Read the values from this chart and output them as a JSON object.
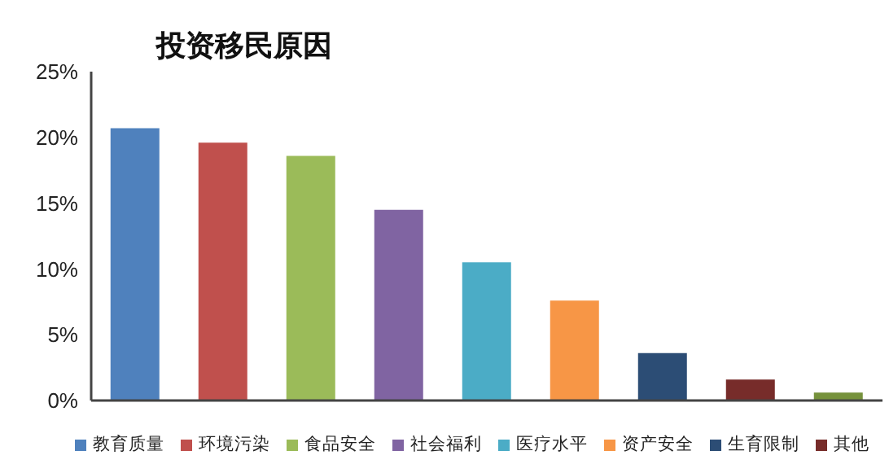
{
  "chart_data": {
    "type": "bar",
    "title": "投资移民原因",
    "categories": [
      null,
      null,
      null,
      null,
      null,
      null,
      null,
      null,
      null
    ],
    "series": [
      {
        "name": "教育质量",
        "color": "#4f81bd",
        "values": [
          20.7,
          null,
          null,
          null,
          null,
          null,
          null,
          null,
          null
        ]
      },
      {
        "name": "环境污染",
        "color": "#c0504d",
        "values": [
          null,
          19.6,
          null,
          null,
          null,
          null,
          null,
          null,
          null
        ]
      },
      {
        "name": "食品安全",
        "color": "#9bbb59",
        "values": [
          null,
          null,
          18.6,
          null,
          null,
          null,
          null,
          null,
          null
        ]
      },
      {
        "name": "社会福利",
        "color": "#8064a2",
        "values": [
          null,
          null,
          null,
          14.5,
          null,
          null,
          null,
          null,
          null
        ]
      },
      {
        "name": "医疗水平",
        "color": "#4bacc6",
        "values": [
          null,
          null,
          null,
          null,
          10.5,
          null,
          null,
          null,
          null
        ]
      },
      {
        "name": "资产安全",
        "color": "#f79646",
        "values": [
          null,
          null,
          null,
          null,
          null,
          7.6,
          null,
          null,
          null
        ]
      },
      {
        "name": "生育限制",
        "color": "#2c4d75",
        "values": [
          null,
          null,
          null,
          null,
          null,
          null,
          3.6,
          null,
          null
        ]
      },
      {
        "name": "其他",
        "color": "#772c2a",
        "values": [
          null,
          null,
          null,
          null,
          null,
          null,
          null,
          1.6,
          null
        ]
      },
      {
        "color": "#76923c",
        "values": [
          null,
          null,
          null,
          null,
          null,
          null,
          null,
          null,
          0.6
        ]
      }
    ],
    "stacked": true,
    "ylim": [
      0,
      25
    ],
    "yticks": [
      {
        "value": 0,
        "label": "0%"
      },
      {
        "value": 5,
        "label": "5%"
      },
      {
        "value": 10,
        "label": "10%"
      },
      {
        "value": 15,
        "label": "15%"
      },
      {
        "value": 20,
        "label": "20%"
      },
      {
        "value": 25,
        "label": "25%"
      }
    ],
    "legend": "bottom"
  }
}
